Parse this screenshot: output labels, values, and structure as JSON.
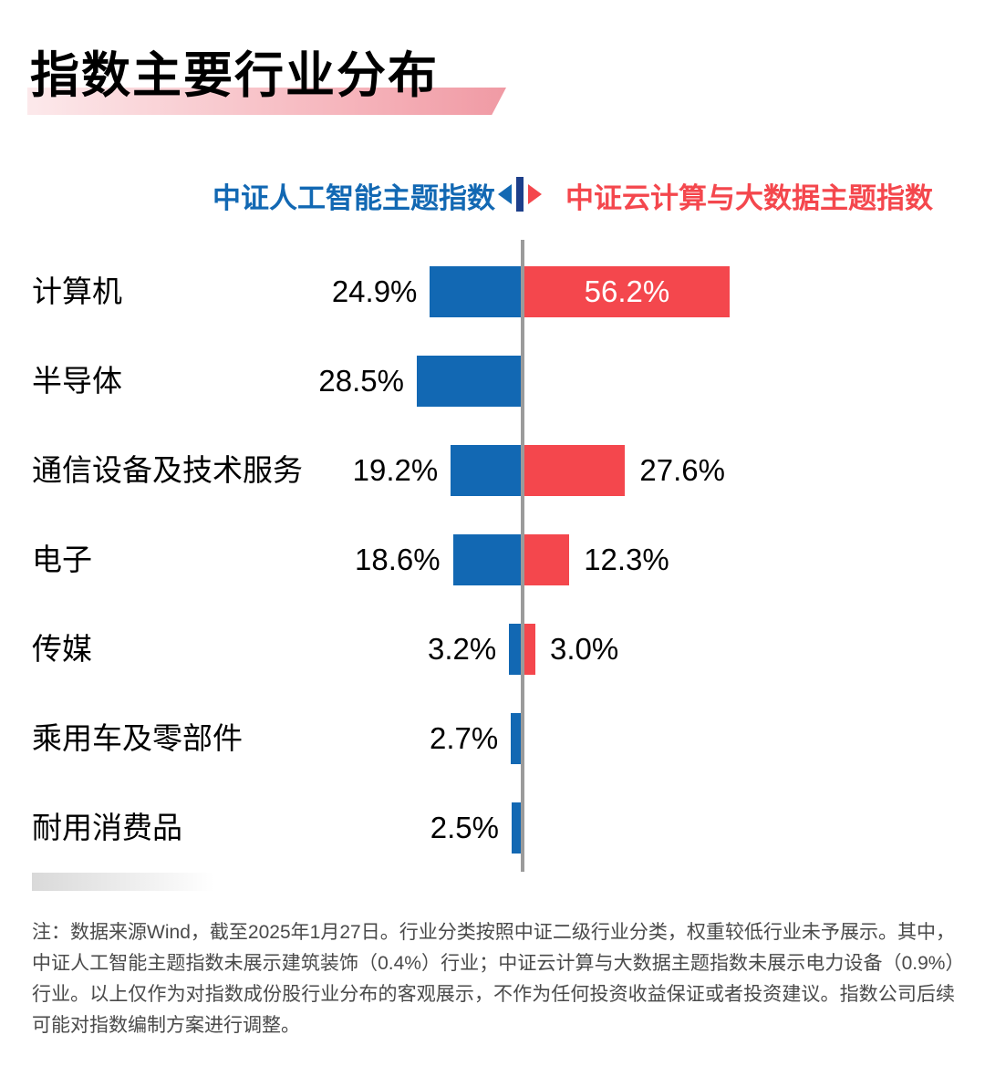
{
  "title": "指数主要行业分布",
  "legend": {
    "left_label": "中证人工智能主题指数",
    "right_label": "中证云计算与大数据主题指数"
  },
  "chart_data": {
    "type": "bar",
    "orientation": "horizontal-diverging",
    "categories": [
      "计算机",
      "半导体",
      "通信设备及技术服务",
      "电子",
      "传媒",
      "乘用车及零部件",
      "耐用消费品"
    ],
    "series": [
      {
        "name": "中证人工智能主题指数",
        "side": "left",
        "color": "#1268b3",
        "values": [
          24.9,
          28.5,
          19.2,
          18.6,
          3.2,
          2.7,
          2.5
        ],
        "labels": [
          "24.9%",
          "28.5%",
          "19.2%",
          "18.6%",
          "3.2%",
          "2.7%",
          "2.5%"
        ]
      },
      {
        "name": "中证云计算与大数据主题指数",
        "side": "right",
        "color": "#f4474d",
        "values": [
          56.2,
          null,
          27.6,
          12.3,
          3.0,
          null,
          null
        ],
        "labels": [
          "56.2%",
          "",
          "27.6%",
          "12.3%",
          "3.0%",
          "",
          ""
        ]
      }
    ],
    "unit": "%",
    "legend_position": "top",
    "grid": false
  },
  "note": "注：数据来源Wind，截至2025年1月27日。行业分类按照中证二级行业分类，权重较低行业未予展示。其中，中证人工智能主题指数未展示建筑装饰（0.4%）行业；中证云计算与大数据主题指数未展示电力设备（0.9%）行业。以上仅作为对指数成份股行业分布的客观展示，不作为任何投资收益保证或者投资建议。指数公司后续可能对指数编制方案进行调整。",
  "colors": {
    "blue": "#1268b3",
    "red": "#f4474d",
    "divider_navy": "#1d3f8a",
    "axis_gray": "#9b9b9b",
    "note_gray": "#4a4a4a",
    "title_underline_start": "#fce9eb",
    "title_underline_end": "#f09aa4"
  }
}
